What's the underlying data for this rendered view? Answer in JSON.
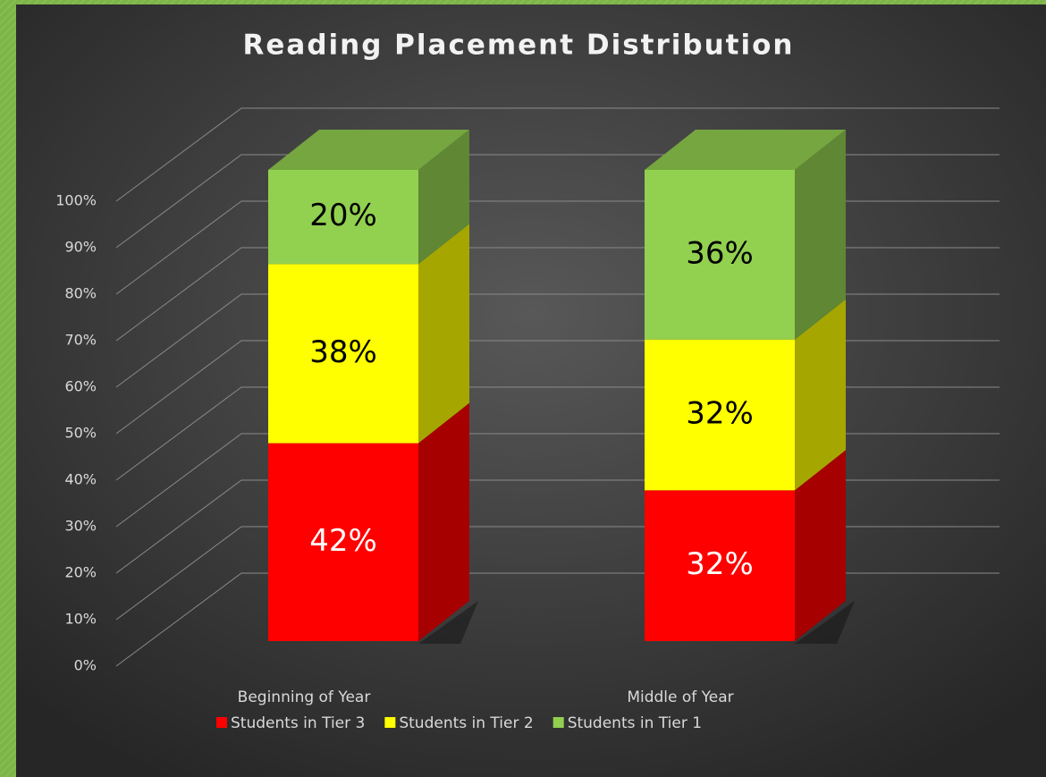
{
  "chart_data": {
    "type": "bar3d_stacked",
    "title": "Reading Placement Distribution",
    "categories": [
      "Beginning of Year",
      "Middle of Year"
    ],
    "series": [
      {
        "name": "Students in Tier 3",
        "color": "#ff0000",
        "values": [
          42,
          32
        ],
        "value_labels": [
          "42%",
          "32%"
        ]
      },
      {
        "name": "Students in Tier 2",
        "color": "#ffff00",
        "values": [
          38,
          32
        ],
        "value_labels": [
          "38%",
          "32%"
        ]
      },
      {
        "name": "Students in Tier 1",
        "color": "#92d050",
        "values": [
          20,
          36
        ],
        "value_labels": [
          "20%",
          "36%"
        ]
      }
    ],
    "ylim": [
      0,
      100
    ],
    "yticks": [
      {
        "value": 0,
        "label": "0%"
      },
      {
        "value": 10,
        "label": "10%"
      },
      {
        "value": 20,
        "label": "20%"
      },
      {
        "value": 30,
        "label": "30%"
      },
      {
        "value": 40,
        "label": "40%"
      },
      {
        "value": 50,
        "label": "50%"
      },
      {
        "value": 60,
        "label": "60%"
      },
      {
        "value": 70,
        "label": "70%"
      },
      {
        "value": 80,
        "label": "80%"
      },
      {
        "value": 90,
        "label": "90%"
      },
      {
        "value": 100,
        "label": "100%"
      }
    ],
    "grid": true,
    "legend": "bottom"
  }
}
